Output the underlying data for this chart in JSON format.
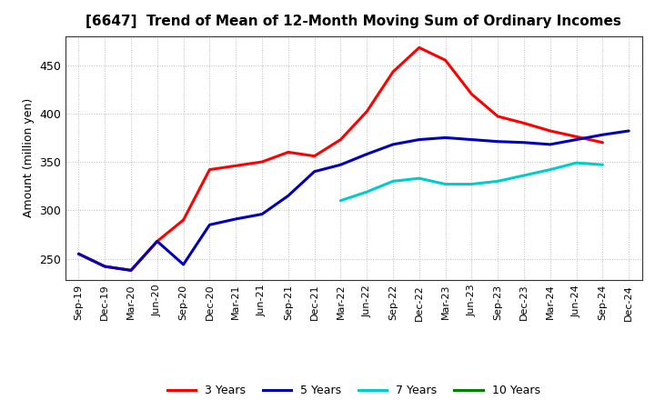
{
  "title": "[6647]  Trend of Mean of 12-Month Moving Sum of Ordinary Incomes",
  "ylabel": "Amount (million yen)",
  "x_labels": [
    "Sep-19",
    "Dec-19",
    "Mar-20",
    "Jun-20",
    "Sep-20",
    "Dec-20",
    "Mar-21",
    "Jun-21",
    "Sep-21",
    "Dec-21",
    "Mar-22",
    "Jun-22",
    "Sep-22",
    "Dec-22",
    "Mar-23",
    "Jun-23",
    "Sep-23",
    "Dec-23",
    "Mar-24",
    "Jun-24",
    "Sep-24",
    "Dec-24"
  ],
  "series": {
    "3 Years": {
      "color": "#FF0000",
      "data": [
        255,
        242,
        238,
        268,
        290,
        342,
        346,
        350,
        360,
        356,
        373,
        402,
        443,
        468,
        455,
        420,
        397,
        390,
        382,
        376,
        370,
        null
      ]
    },
    "5 Years": {
      "color": "#0000BB",
      "data": [
        255,
        242,
        238,
        268,
        244,
        285,
        291,
        296,
        315,
        340,
        347,
        358,
        368,
        373,
        375,
        373,
        371,
        370,
        368,
        373,
        378,
        382
      ]
    },
    "7 Years": {
      "color": "#00CCCC",
      "data": [
        null,
        null,
        null,
        null,
        null,
        null,
        null,
        null,
        null,
        null,
        310,
        319,
        330,
        333,
        327,
        327,
        330,
        336,
        342,
        349,
        347,
        null
      ]
    },
    "10 Years": {
      "color": "#008000",
      "data": [
        null,
        null,
        null,
        null,
        null,
        null,
        null,
        null,
        null,
        null,
        null,
        null,
        null,
        null,
        null,
        null,
        null,
        null,
        null,
        null,
        null,
        null
      ]
    }
  },
  "ylim": [
    228,
    480
  ],
  "yticks": [
    250,
    300,
    350,
    400,
    450
  ],
  "background_color": "#FFFFFF",
  "grid_color": "#AAAAAA",
  "legend_labels": [
    "3 Years",
    "5 Years",
    "7 Years",
    "10 Years"
  ]
}
